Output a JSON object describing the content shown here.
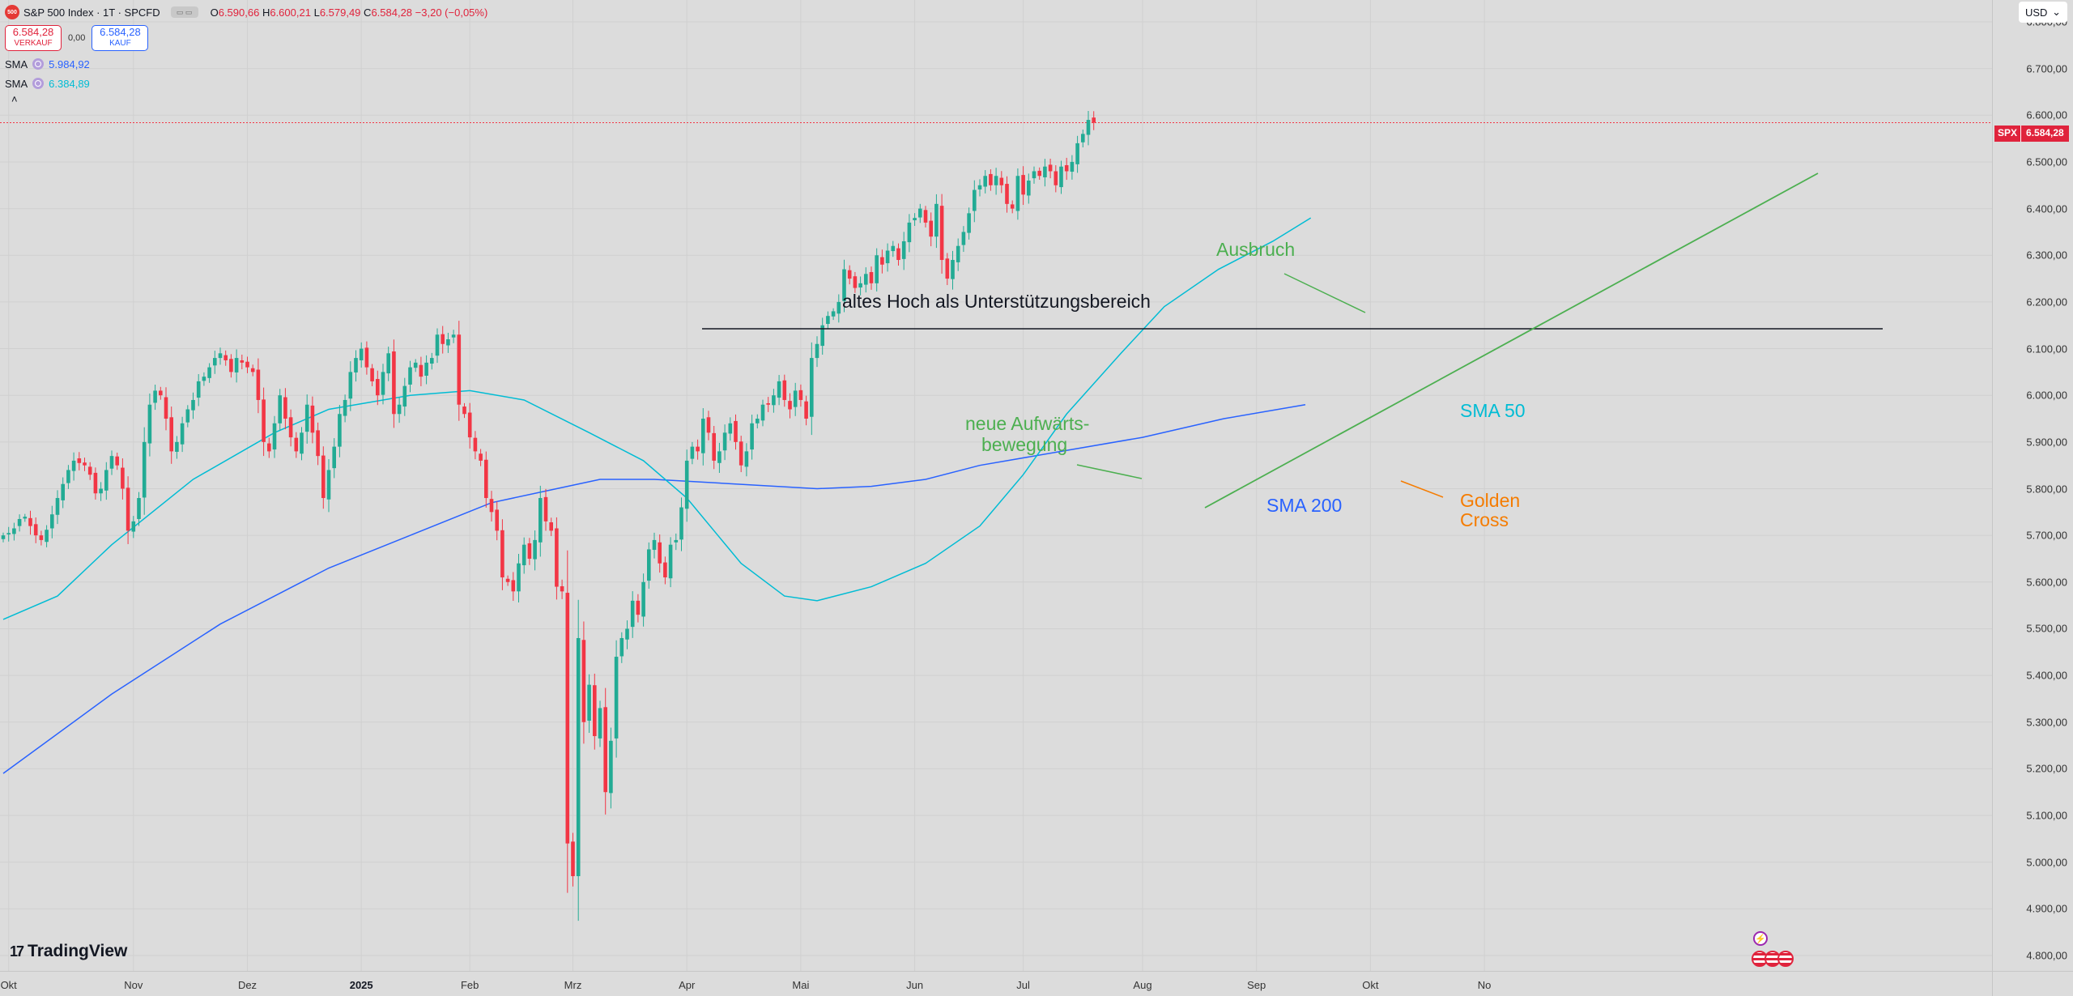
{
  "legend": {
    "logo": "500",
    "title": "S&P 500 Index · 1T · SPCFD",
    "ohlc": {
      "o_label": "O",
      "o": "6.590,66",
      "h_label": "H",
      "h": "6.600,21",
      "l_label": "L",
      "l": "6.579,49",
      "c_label": "C",
      "c": "6.584,28",
      "change": "−3,20 (−0,05%)"
    },
    "sell": {
      "price": "6.584,28",
      "label": "VERKAUF"
    },
    "buy": {
      "price": "6.584,28",
      "label": "KAUF"
    },
    "spread": "0,00",
    "sma_rows": [
      {
        "label": "SMA",
        "value": "5.984,92",
        "color": "#2962ff"
      },
      {
        "label": "SMA",
        "value": "6.384,89",
        "color": "#00bcd4"
      }
    ],
    "collapse_icon": "chevron-up-icon",
    "collapse_glyph": "˄"
  },
  "currency": {
    "label": "USD",
    "icon": "chevron-down-icon",
    "glyph": "⌄"
  },
  "price_tag": {
    "symbol": "SPX",
    "value": "6.584,28"
  },
  "price_axis": {
    "min": 4780,
    "max": 6850,
    "ticks": [
      "6.800,00",
      "6.700,00",
      "6.600,00",
      "6.500,00",
      "6.400,00",
      "6.300,00",
      "6.200,00",
      "6.100,00",
      "6.000,00",
      "5.900,00",
      "5.800,00",
      "5.700,00",
      "5.600,00",
      "5.500,00",
      "5.400,00",
      "5.300,00",
      "5.200,00",
      "5.100,00",
      "5.000,00",
      "4.900,00",
      "4.800,00"
    ],
    "tick_values": [
      6800,
      6700,
      6600,
      6500,
      6400,
      6300,
      6200,
      6100,
      6000,
      5900,
      5800,
      5700,
      5600,
      5500,
      5400,
      5300,
      5200,
      5100,
      5000,
      4900,
      4800
    ]
  },
  "time_axis": {
    "labels": [
      {
        "text": "Okt",
        "t": 1,
        "bold": false
      },
      {
        "text": "Nov",
        "t": 24,
        "bold": false
      },
      {
        "text": "Dez",
        "t": 45,
        "bold": false
      },
      {
        "text": "2025",
        "t": 66,
        "bold": true
      },
      {
        "text": "Feb",
        "t": 86,
        "bold": false
      },
      {
        "text": "Mrz",
        "t": 105,
        "bold": false
      },
      {
        "text": "Apr",
        "t": 126,
        "bold": false
      },
      {
        "text": "Mai",
        "t": 147,
        "bold": false
      },
      {
        "text": "Jun",
        "t": 168,
        "bold": false
      },
      {
        "text": "Jul",
        "t": 188,
        "bold": false
      },
      {
        "text": "Aug",
        "t": 210,
        "bold": false
      },
      {
        "text": "Sep",
        "t": 231,
        "bold": false
      },
      {
        "text": "Okt",
        "t": 252,
        "bold": false
      },
      {
        "text": "No",
        "t": 273,
        "bold": false
      }
    ]
  },
  "chart_data": {
    "type": "candlestick",
    "symbol": "SPX",
    "ylim": [
      4780,
      6850
    ],
    "up_color": "#22ab94",
    "down_color": "#f23645",
    "closes": [
      5700,
      5705,
      5715,
      5735,
      5740,
      5720,
      5700,
      5690,
      5712,
      5745,
      5780,
      5810,
      5840,
      5860,
      5855,
      5850,
      5830,
      5790,
      5800,
      5840,
      5870,
      5850,
      5800,
      5710,
      5730,
      5780,
      5900,
      5980,
      6010,
      6000,
      5950,
      5880,
      5900,
      5940,
      5970,
      5990,
      6030,
      6040,
      6060,
      6080,
      6090,
      6075,
      6050,
      6080,
      6070,
      6060,
      6050,
      5990,
      5900,
      5880,
      5940,
      6000,
      5950,
      5910,
      5880,
      5920,
      5980,
      5920,
      5870,
      5780,
      5840,
      5890,
      5960,
      5990,
      6050,
      6080,
      6100,
      6060,
      6030,
      6000,
      6050,
      6090,
      5960,
      5980,
      6020,
      6060,
      6070,
      6040,
      6070,
      6080,
      6130,
      6110,
      6120,
      6130,
      5980,
      5960,
      5910,
      5880,
      5860,
      5780,
      5750,
      5710,
      5610,
      5600,
      5580,
      5640,
      5680,
      5650,
      5690,
      5780,
      5730,
      5710,
      5590,
      5580,
      5040,
      4970,
      5480,
      5300,
      5380,
      5270,
      5330,
      5150,
      5260,
      5440,
      5480,
      5500,
      5560,
      5530,
      5600,
      5670,
      5690,
      5640,
      5610,
      5680,
      5690,
      5760,
      5860,
      5890,
      5880,
      5950,
      5920,
      5860,
      5880,
      5920,
      5940,
      5900,
      5850,
      5880,
      5940,
      5950,
      5980,
      5980,
      6000,
      6030,
      5990,
      5970,
      6010,
      5990,
      5950,
      6080,
      6110,
      6150,
      6170,
      6180,
      6200,
      6270,
      6250,
      6230,
      6240,
      6260,
      6240,
      6300,
      6280,
      6310,
      6320,
      6290,
      6330,
      6370,
      6380,
      6400,
      6370,
      6340,
      6410,
      6290,
      6250,
      6290,
      6320,
      6350,
      6390,
      6440,
      6450,
      6470,
      6450,
      6470,
      6450,
      6410,
      6400,
      6470,
      6430,
      6460,
      6480,
      6470,
      6490,
      6480,
      6450,
      6490,
      6480,
      6500,
      6540,
      6560,
      6590,
      6584
    ],
    "series": [
      {
        "name": "SMA 200",
        "color": "#2962ff",
        "points": [
          [
            0,
            5190
          ],
          [
            20,
            5360
          ],
          [
            40,
            5510
          ],
          [
            60,
            5630
          ],
          [
            75,
            5700
          ],
          [
            90,
            5770
          ],
          [
            100,
            5795
          ],
          [
            110,
            5820
          ],
          [
            120,
            5820
          ],
          [
            135,
            5810
          ],
          [
            150,
            5800
          ],
          [
            160,
            5805
          ],
          [
            170,
            5820
          ],
          [
            180,
            5850
          ],
          [
            195,
            5880
          ],
          [
            210,
            5910
          ],
          [
            225,
            5950
          ],
          [
            240,
            5980
          ]
        ]
      },
      {
        "name": "SMA 50",
        "color": "#00bcd4",
        "points": [
          [
            0,
            5520
          ],
          [
            10,
            5570
          ],
          [
            20,
            5680
          ],
          [
            35,
            5820
          ],
          [
            50,
            5920
          ],
          [
            60,
            5970
          ],
          [
            75,
            6000
          ],
          [
            86,
            6010
          ],
          [
            96,
            5990
          ],
          [
            108,
            5920
          ],
          [
            118,
            5860
          ],
          [
            126,
            5780
          ],
          [
            136,
            5640
          ],
          [
            144,
            5570
          ],
          [
            150,
            5560
          ],
          [
            160,
            5590
          ],
          [
            170,
            5640
          ],
          [
            180,
            5720
          ],
          [
            188,
            5830
          ],
          [
            196,
            5960
          ],
          [
            206,
            6090
          ],
          [
            214,
            6190
          ],
          [
            224,
            6270
          ],
          [
            234,
            6330
          ],
          [
            241,
            6380
          ]
        ]
      }
    ],
    "annotations": [
      {
        "text": "altes Hoch als Unterstützungsbereich",
        "color": "#131722"
      },
      {
        "text": "Ausbruch",
        "color": "#4caf50"
      },
      {
        "text": "neue Aufwärts-",
        "color": "#4caf50"
      },
      {
        "text": "bewegung",
        "color": "#4caf50"
      },
      {
        "text": "SMA 50",
        "color": "#00bcd4"
      },
      {
        "text": "SMA 200",
        "color": "#2962ff"
      },
      {
        "text": "Golden",
        "color": "#f57c00"
      },
      {
        "text": "Cross",
        "color": "#f57c00"
      }
    ]
  },
  "footer": {
    "brand": "TradingView",
    "brand_mark": "17"
  },
  "events": {
    "bolt_icon": "lightning-icon",
    "bolt_glyph": "⚡",
    "flag_icon": "us-flag-icon"
  }
}
